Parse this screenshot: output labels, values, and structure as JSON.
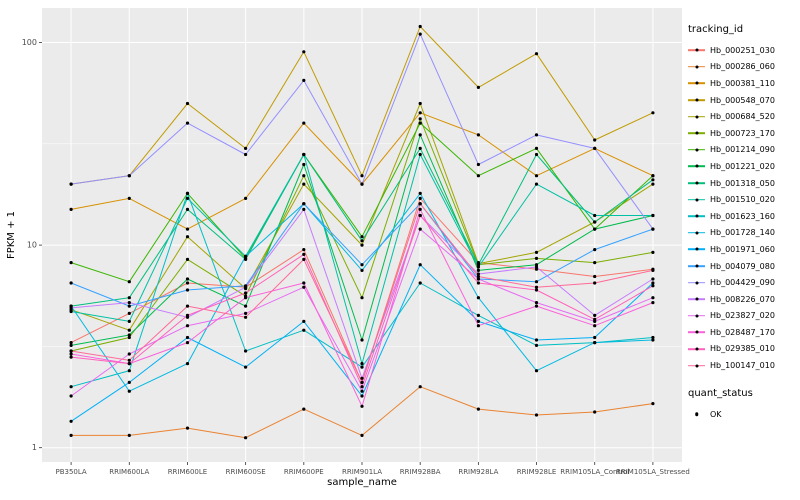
{
  "figure": {
    "y_axis_title": "FPKM + 1",
    "x_axis_title": "sample_name",
    "legend": {
      "tracking_title": "tracking_id",
      "quant_title": "quant_status",
      "quant_items": [
        {
          "label": "OK"
        }
      ]
    }
  },
  "chart_data": {
    "type": "line",
    "title": "",
    "xlabel": "sample_name",
    "ylabel": "FPKM + 1",
    "y_scale": "log10",
    "ylim": [
      0.85,
      148
    ],
    "y_ticks": [
      1,
      10,
      100
    ],
    "y_tick_labels": [
      "1",
      "10",
      "100"
    ],
    "y_minor_ticks": [
      3.162,
      31.62
    ],
    "legend_position": "right",
    "panel_bg": "#EBEBEB",
    "grid_color": "#FFFFFF",
    "tick_color": "#333333",
    "tick_label_color": "#4D4D4D",
    "point_color": "#000000",
    "categories": [
      "PB350LA",
      "RRIM600LA",
      "RRIM600LE",
      "RRIM600SE",
      "RRIM600PE",
      "RRIM901LA",
      "RRIM928BA",
      "RRIM928LA",
      "RRIM928LE",
      "RRIM105LA_Control",
      "RRIM105LA_Stressed"
    ],
    "series": [
      {
        "name": "Hb_000251_030",
        "color": "#F8766D",
        "values": [
          3.3,
          4.6,
          6.5,
          6.2,
          9.5,
          2.1,
          17,
          8.2,
          7.6,
          7.0,
          7.6
        ]
      },
      {
        "name": "Hb_000286_060",
        "color": "#EA8331",
        "values": [
          1.15,
          1.15,
          1.25,
          1.12,
          1.55,
          1.15,
          2.0,
          1.55,
          1.45,
          1.5,
          1.65
        ]
      },
      {
        "name": "Hb_000381_110",
        "color": "#D89000",
        "values": [
          15,
          17,
          12,
          17,
          40,
          20,
          45,
          35,
          22,
          30,
          22
        ]
      },
      {
        "name": "Hb_000548_070",
        "color": "#C09B00",
        "values": [
          20,
          22,
          50,
          30,
          90,
          22,
          120,
          60,
          88,
          33,
          45
        ]
      },
      {
        "name": "Hb_000684_520",
        "color": "#A3A500",
        "values": [
          4.8,
          3.8,
          11,
          6.1,
          20,
          10,
          50,
          8.1,
          9.2,
          13,
          20
        ]
      },
      {
        "name": "Hb_000723_170",
        "color": "#7CAE00",
        "values": [
          3.0,
          3.5,
          8.5,
          5.6,
          22,
          5.5,
          42,
          8.0,
          8.6,
          8.2,
          9.2
        ]
      },
      {
        "name": "Hb_001214_090",
        "color": "#39B600",
        "values": [
          8.2,
          6.6,
          18,
          8.6,
          28,
          11,
          40,
          22,
          30,
          12,
          22
        ]
      },
      {
        "name": "Hb_001221_020",
        "color": "#00BB4E",
        "values": [
          3.2,
          3.6,
          6.8,
          5.0,
          25,
          3.4,
          35,
          7.5,
          8.0,
          12,
          14
        ]
      },
      {
        "name": "Hb_001318_050",
        "color": "#00BF7D",
        "values": [
          5.0,
          5.5,
          15,
          8.5,
          28,
          10.5,
          30,
          8.0,
          28,
          13,
          21
        ]
      },
      {
        "name": "Hb_001510_020",
        "color": "#00C1A3",
        "values": [
          4.7,
          4.2,
          17,
          8.8,
          28,
          2.6,
          28,
          7.8,
          20,
          14,
          14
        ]
      },
      {
        "name": "Hb_001623_160",
        "color": "#00BFC4",
        "values": [
          2.0,
          2.4,
          18,
          3.0,
          3.8,
          2.5,
          6.5,
          4.5,
          3.2,
          3.3,
          3.5
        ]
      },
      {
        "name": "Hb_001728_140",
        "color": "#00BAE0",
        "values": [
          5.0,
          1.9,
          2.6,
          8.8,
          16,
          7.5,
          18,
          5.5,
          2.4,
          3.3,
          3.4
        ]
      },
      {
        "name": "Hb_001971_060",
        "color": "#00B0F6",
        "values": [
          1.35,
          2.1,
          3.5,
          2.5,
          4.2,
          1.8,
          8.0,
          4.2,
          3.4,
          3.5,
          6.5
        ]
      },
      {
        "name": "Hb_004079_080",
        "color": "#35A2FF",
        "values": [
          6.5,
          5.0,
          6.0,
          6.3,
          16,
          8.0,
          16,
          6.8,
          6.6,
          9.5,
          12
        ]
      },
      {
        "name": "Hb_004429_090",
        "color": "#9590FF",
        "values": [
          20,
          22,
          40,
          28,
          65,
          20,
          110,
          25,
          35,
          30,
          12
        ]
      },
      {
        "name": "Hb_008226_070",
        "color": "#C77CFF",
        "values": [
          4.9,
          5.2,
          4.4,
          6.2,
          15,
          2.2,
          14,
          7.2,
          7.8,
          4.5,
          6.8
        ]
      },
      {
        "name": "Hb_023827_020",
        "color": "#E76BF3",
        "values": [
          1.8,
          2.9,
          4.0,
          4.6,
          6.2,
          1.9,
          12,
          6.8,
          5.2,
          4.2,
          5.5
        ]
      },
      {
        "name": "Hb_028487_170",
        "color": "#FA62DB",
        "values": [
          2.9,
          2.6,
          3.3,
          5.5,
          6.5,
          1.6,
          15,
          4.0,
          5.0,
          4.0,
          5.2
        ]
      },
      {
        "name": "Hb_029385_010",
        "color": "#FF62BC",
        "values": [
          2.8,
          2.6,
          4.5,
          5.8,
          9.0,
          2.0,
          14,
          6.5,
          6.0,
          4.3,
          6.3
        ]
      },
      {
        "name": "Hb_100147_010",
        "color": "#FF6A98",
        "values": [
          3.0,
          2.7,
          5.0,
          4.4,
          8.5,
          2.1,
          16,
          7.0,
          6.2,
          6.5,
          7.5
        ]
      }
    ]
  }
}
